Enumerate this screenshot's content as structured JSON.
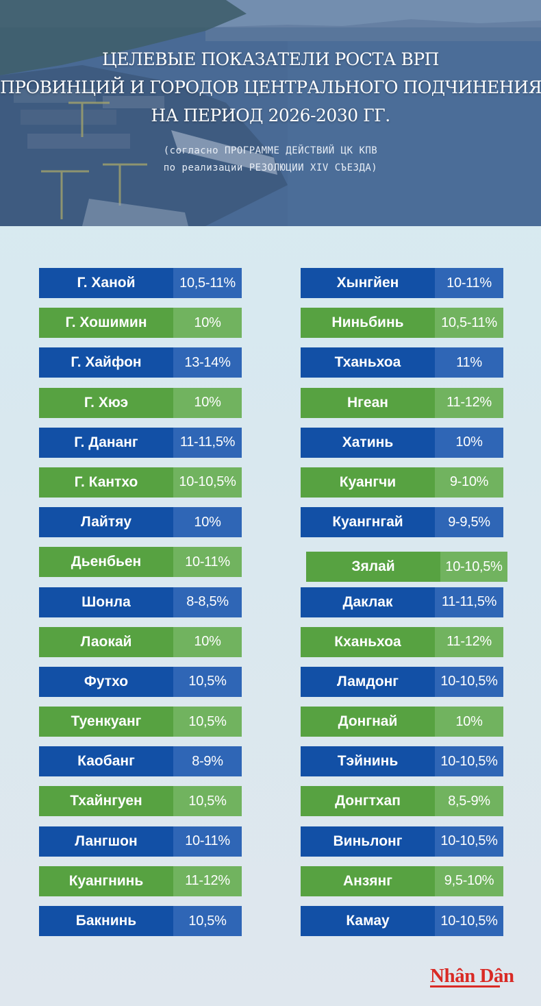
{
  "header": {
    "title_lines": [
      "ЦЕЛЕВЫЕ ПОКАЗАТЕЛИ РОСТА ВРП",
      "ПРОВИНЦИЙ И ГОРОДОВ ЦЕНТРАЛЬНОГО ПОДЧИНЕНИЯ",
      "НА ПЕРИОД 2026-2030 ГГ."
    ],
    "subtitle_lines": [
      "(согласно ПРОГРАММЕ ДЕЙСТВИЙ ЦК КПВ",
      "по реализации РЕЗОЛЮЦИИ XIV СЪЕЗДА)"
    ]
  },
  "left_column": [
    {
      "name": "Г. Ханой",
      "value": "10,5-11%",
      "color": "blue"
    },
    {
      "name": "Г. Хошимин",
      "value": "10%",
      "color": "green"
    },
    {
      "name": "Г. Хайфон",
      "value": "13-14%",
      "color": "blue"
    },
    {
      "name": "Г. Хюэ",
      "value": "10%",
      "color": "green"
    },
    {
      "name": "Г. Дананг",
      "value": "11-11,5%",
      "color": "blue"
    },
    {
      "name": "Г. Кантхо",
      "value": "10-10,5%",
      "color": "green"
    },
    {
      "name": "Лайтяу",
      "value": "10%",
      "color": "blue"
    },
    {
      "name": "Дьенбьен",
      "value": "10-11%",
      "color": "green"
    },
    {
      "name": "Шонла",
      "value": "8-8,5%",
      "color": "blue"
    },
    {
      "name": "Лаокай",
      "value": "10%",
      "color": "green"
    },
    {
      "name": "Футхо",
      "value": "10,5%",
      "color": "blue"
    },
    {
      "name": "Туенкуанг",
      "value": "10,5%",
      "color": "green"
    },
    {
      "name": "Каобанг",
      "value": "8-9%",
      "color": "blue"
    },
    {
      "name": "Тхайнгуен",
      "value": "10,5%",
      "color": "green"
    },
    {
      "name": "Лангшон",
      "value": "10-11%",
      "color": "blue"
    },
    {
      "name": "Куангнинь",
      "value": "11-12%",
      "color": "green"
    },
    {
      "name": "Бакнинь",
      "value": "10,5%",
      "color": "blue"
    }
  ],
  "right_column": [
    {
      "name": "Хынгйен",
      "value": "10-11%",
      "color": "blue"
    },
    {
      "name": "Ниньбинь",
      "value": "10,5-11%",
      "color": "green"
    },
    {
      "name": "Тханьхоа",
      "value": "11%",
      "color": "blue"
    },
    {
      "name": "Нгеан",
      "value": "11-12%",
      "color": "green"
    },
    {
      "name": "Хатинь",
      "value": "10%",
      "color": "blue"
    },
    {
      "name": "Куангчи",
      "value": "9-10%",
      "color": "green"
    },
    {
      "name": "Куангнгай",
      "value": "9-9,5%",
      "color": "blue"
    },
    {
      "name": "Зялай",
      "value": "10-10,5%",
      "color": "green",
      "offset": true
    },
    {
      "name": "Даклак",
      "value": "11-11,5%",
      "color": "blue"
    },
    {
      "name": "Кханьхоа",
      "value": "11-12%",
      "color": "green"
    },
    {
      "name": "Ламдонг",
      "value": "10-10,5%",
      "color": "blue"
    },
    {
      "name": "Донгнай",
      "value": "10%",
      "color": "green"
    },
    {
      "name": "Тэйнинь",
      "value": "10-10,5%",
      "color": "blue"
    },
    {
      "name": "Донгтхап",
      "value": "8,5-9%",
      "color": "green"
    },
    {
      "name": "Виньлонг",
      "value": "10-10,5%",
      "color": "blue"
    },
    {
      "name": "Анзянг",
      "value": "9,5-10%",
      "color": "green"
    },
    {
      "name": "Камау",
      "value": "10-10,5%",
      "color": "blue"
    }
  ],
  "logo": "Nhân Dân",
  "colors": {
    "blue_name": "#1250a6",
    "blue_value": "#2f66b6",
    "green_name": "#57a241",
    "green_value": "#71b35f",
    "logo_red": "#d92a25"
  }
}
